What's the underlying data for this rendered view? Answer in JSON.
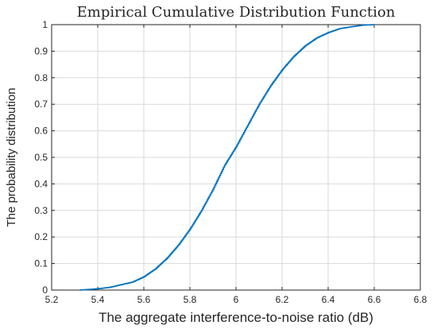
{
  "chart_data": {
    "type": "line",
    "title": "Empirical Cumulative Distribution Function",
    "xlabel": "The aggregate interference-to-noise ratio (dB)",
    "ylabel": "The probability distribution",
    "xlim": [
      5.2,
      6.8
    ],
    "ylim": [
      0,
      1
    ],
    "xticks": [
      "5.2",
      "5.4",
      "5.6",
      "5.8",
      "6",
      "6.2",
      "6.4",
      "6.6",
      "6.8"
    ],
    "yticks": [
      "0",
      "0.1",
      "0.2",
      "0.3",
      "0.4",
      "0.5",
      "0.6",
      "0.7",
      "0.8",
      "0.9",
      "1"
    ],
    "grid": true,
    "line_color": "#0072BD",
    "series": [
      {
        "x": [
          5.32,
          5.4,
          5.45,
          5.5,
          5.55,
          5.6,
          5.65,
          5.7,
          5.75,
          5.8,
          5.85,
          5.9,
          5.95,
          6.0,
          6.05,
          6.1,
          6.15,
          6.2,
          6.25,
          6.3,
          6.35,
          6.4,
          6.45,
          6.5,
          6.55,
          6.6
        ],
        "values": [
          0.0,
          0.005,
          0.01,
          0.02,
          0.03,
          0.05,
          0.08,
          0.12,
          0.17,
          0.23,
          0.3,
          0.38,
          0.47,
          0.54,
          0.62,
          0.7,
          0.77,
          0.83,
          0.88,
          0.92,
          0.95,
          0.97,
          0.985,
          0.992,
          0.998,
          1.0
        ]
      }
    ]
  }
}
